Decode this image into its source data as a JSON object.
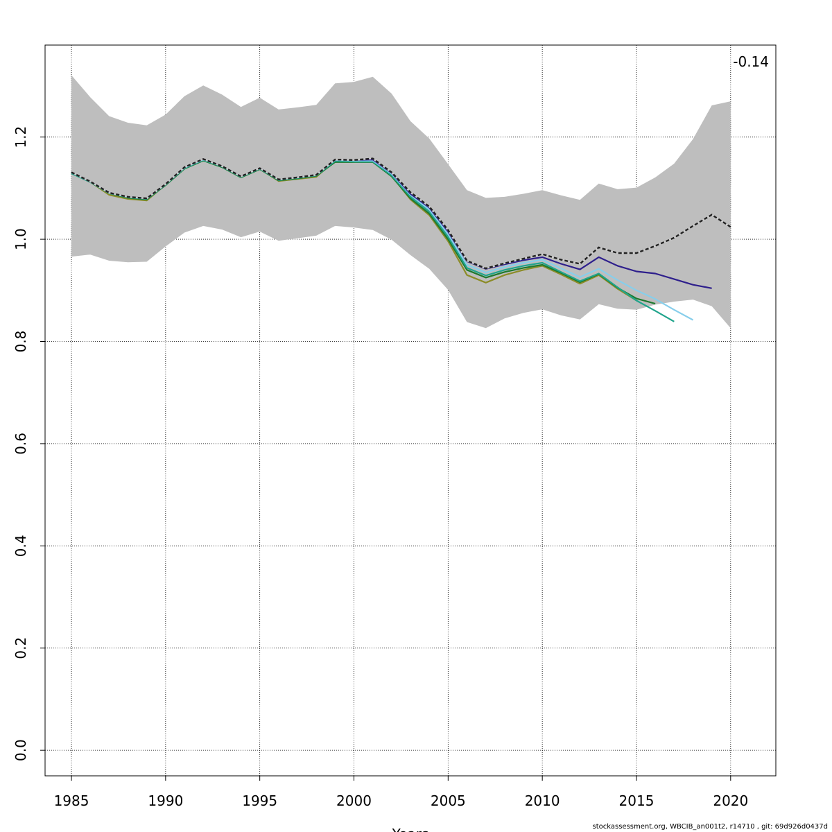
{
  "chart_data": {
    "type": "line",
    "title": "",
    "xlabel": "Years",
    "ylabel": "",
    "xlim": [
      1983.6,
      2022.4
    ],
    "ylim": [
      -0.05,
      1.38
    ],
    "x_ticks": [
      1985,
      1990,
      1995,
      2000,
      2005,
      2010,
      2015,
      2020
    ],
    "y_ticks": [
      0.0,
      0.2,
      0.4,
      0.6,
      0.8,
      1.0,
      1.2
    ],
    "y_tick_labels": [
      "0.0",
      "0.2",
      "0.4",
      "0.6",
      "0.8",
      "1.0",
      "1.2"
    ],
    "grid": true,
    "annotation": "-0.14",
    "confidence_band": {
      "color": "#bebebe",
      "x": [
        1985,
        1986,
        1987,
        1988,
        1989,
        1990,
        1991,
        1992,
        1993,
        1994,
        1995,
        1996,
        1997,
        1998,
        1999,
        2000,
        2001,
        2002,
        2003,
        2004,
        2005,
        2006,
        2007,
        2008,
        2009,
        2010,
        2011,
        2012,
        2013,
        2014,
        2015,
        2016,
        2017,
        2018,
        2019,
        2020
      ],
      "upper": [
        1.321,
        1.278,
        1.241,
        1.228,
        1.223,
        1.244,
        1.28,
        1.301,
        1.283,
        1.259,
        1.277,
        1.254,
        1.258,
        1.263,
        1.305,
        1.308,
        1.318,
        1.285,
        1.231,
        1.197,
        1.147,
        1.096,
        1.081,
        1.083,
        1.089,
        1.096,
        1.086,
        1.077,
        1.109,
        1.098,
        1.101,
        1.121,
        1.148,
        1.196,
        1.262,
        1.27
      ],
      "lower": [
        0.966,
        0.97,
        0.958,
        0.955,
        0.956,
        0.986,
        1.013,
        1.026,
        1.019,
        1.004,
        1.015,
        0.997,
        1.002,
        1.007,
        1.026,
        1.023,
        1.018,
        0.999,
        0.969,
        0.942,
        0.901,
        0.838,
        0.826,
        0.845,
        0.856,
        0.863,
        0.851,
        0.843,
        0.873,
        0.864,
        0.862,
        0.872,
        0.878,
        0.882,
        0.869,
        0.826
      ]
    },
    "series": [
      {
        "color": "#222222",
        "dashed": true,
        "x": [
          1985,
          1986,
          1987,
          1988,
          1989,
          1990,
          1991,
          1992,
          1993,
          1994,
          1995,
          1996,
          1997,
          1998,
          1999,
          2000,
          2001,
          2002,
          2003,
          2004,
          2005,
          2006,
          2007,
          2008,
          2009,
          2010,
          2011,
          2012,
          2013,
          2014,
          2015,
          2016,
          2017,
          2018,
          2019,
          2020
        ],
        "values": [
          1.131,
          1.113,
          1.091,
          1.083,
          1.08,
          1.108,
          1.141,
          1.157,
          1.143,
          1.123,
          1.139,
          1.117,
          1.121,
          1.126,
          1.156,
          1.155,
          1.158,
          1.131,
          1.092,
          1.064,
          1.018,
          0.958,
          0.943,
          0.953,
          0.962,
          0.971,
          0.96,
          0.952,
          0.984,
          0.973,
          0.973,
          0.987,
          1.003,
          1.026,
          1.048,
          1.024
        ]
      },
      {
        "color": "#2e1f8c",
        "dashed": false,
        "x": [
          1985,
          1986,
          1987,
          1988,
          1989,
          1990,
          1991,
          1992,
          1993,
          1994,
          1995,
          1996,
          1997,
          1998,
          1999,
          2000,
          2001,
          2002,
          2003,
          2004,
          2005,
          2006,
          2007,
          2008,
          2009,
          2010,
          2011,
          2012,
          2013,
          2014,
          2015,
          2016,
          2017,
          2018,
          2019
        ],
        "values": [
          1.131,
          1.113,
          1.091,
          1.083,
          1.08,
          1.108,
          1.141,
          1.157,
          1.143,
          1.123,
          1.139,
          1.117,
          1.121,
          1.126,
          1.156,
          1.155,
          1.156,
          1.13,
          1.089,
          1.062,
          1.015,
          0.957,
          0.942,
          0.951,
          0.959,
          0.965,
          0.952,
          0.941,
          0.965,
          0.948,
          0.937,
          0.933,
          0.922,
          0.911,
          0.904
        ]
      },
      {
        "color": "#87ceeb",
        "dashed": false,
        "x": [
          1985,
          1986,
          1987,
          1988,
          1989,
          1990,
          1991,
          1992,
          1993,
          1994,
          1995,
          1996,
          1997,
          1998,
          1999,
          2000,
          2001,
          2002,
          2003,
          2004,
          2005,
          2006,
          2007,
          2008,
          2009,
          2010,
          2011,
          2012,
          2013,
          2014,
          2015,
          2016,
          2017,
          2018
        ],
        "values": [
          1.131,
          1.113,
          1.091,
          1.083,
          1.08,
          1.108,
          1.14,
          1.156,
          1.143,
          1.123,
          1.139,
          1.117,
          1.121,
          1.126,
          1.155,
          1.154,
          1.154,
          1.128,
          1.087,
          1.058,
          1.01,
          0.95,
          0.935,
          0.946,
          0.954,
          0.96,
          0.943,
          0.926,
          0.942,
          0.92,
          0.9,
          0.883,
          0.862,
          0.842
        ]
      },
      {
        "color": "#20a48c",
        "dashed": false,
        "x": [
          1985,
          1986,
          1987,
          1988,
          1989,
          1990,
          1991,
          1992,
          1993,
          1994,
          1995,
          1996,
          1997,
          1998,
          1999,
          2000,
          2001,
          2002,
          2003,
          2004,
          2005,
          2006,
          2007,
          2008,
          2009,
          2010,
          2011,
          2012,
          2013,
          2014,
          2015,
          2016,
          2017
        ],
        "values": [
          1.129,
          1.112,
          1.09,
          1.082,
          1.079,
          1.107,
          1.139,
          1.155,
          1.142,
          1.122,
          1.138,
          1.116,
          1.12,
          1.125,
          1.153,
          1.152,
          1.152,
          1.125,
          1.083,
          1.054,
          1.005,
          0.944,
          0.929,
          0.94,
          0.948,
          0.954,
          0.936,
          0.918,
          0.933,
          0.906,
          0.88,
          0.86,
          0.839
        ]
      },
      {
        "color": "#1e7a2e",
        "dashed": false,
        "x": [
          1985,
          1986,
          1987,
          1988,
          1989,
          1990,
          1991,
          1992,
          1993,
          1994,
          1995,
          1996,
          1997,
          1998,
          1999,
          2000,
          2001,
          2002,
          2003,
          2004,
          2005,
          2006,
          2007,
          2008,
          2009,
          2010,
          2011,
          2012,
          2013,
          2014,
          2015,
          2016
        ],
        "values": [
          1.129,
          1.112,
          1.09,
          1.081,
          1.078,
          1.106,
          1.138,
          1.154,
          1.141,
          1.121,
          1.137,
          1.115,
          1.119,
          1.124,
          1.151,
          1.151,
          1.151,
          1.123,
          1.08,
          1.05,
          1.0,
          0.94,
          0.925,
          0.936,
          0.944,
          0.95,
          0.934,
          0.916,
          0.932,
          0.905,
          0.884,
          0.874
        ]
      },
      {
        "color": "#8c8c28",
        "dashed": false,
        "x": [
          1985,
          1986,
          1987,
          1988,
          1989,
          1990,
          1991,
          1992,
          1993,
          1994,
          1995,
          1996,
          1997,
          1998,
          1999,
          2000,
          2001,
          2002,
          2003,
          2004,
          2005,
          2006,
          2007,
          2008,
          2009,
          2010,
          2011,
          2012,
          2013,
          2014,
          2015
        ],
        "values": [
          1.131,
          1.112,
          1.087,
          1.079,
          1.076,
          1.107,
          1.14,
          1.157,
          1.143,
          1.121,
          1.138,
          1.114,
          1.118,
          1.122,
          1.155,
          1.155,
          1.157,
          1.124,
          1.078,
          1.047,
          0.996,
          0.93,
          0.915,
          0.93,
          0.94,
          0.948,
          0.931,
          0.913,
          0.93,
          0.903,
          0.88
        ]
      }
    ]
  },
  "footer": "stockassessment.org, WBCIB_an001t2, r14710 , git: 69d926d0437d"
}
